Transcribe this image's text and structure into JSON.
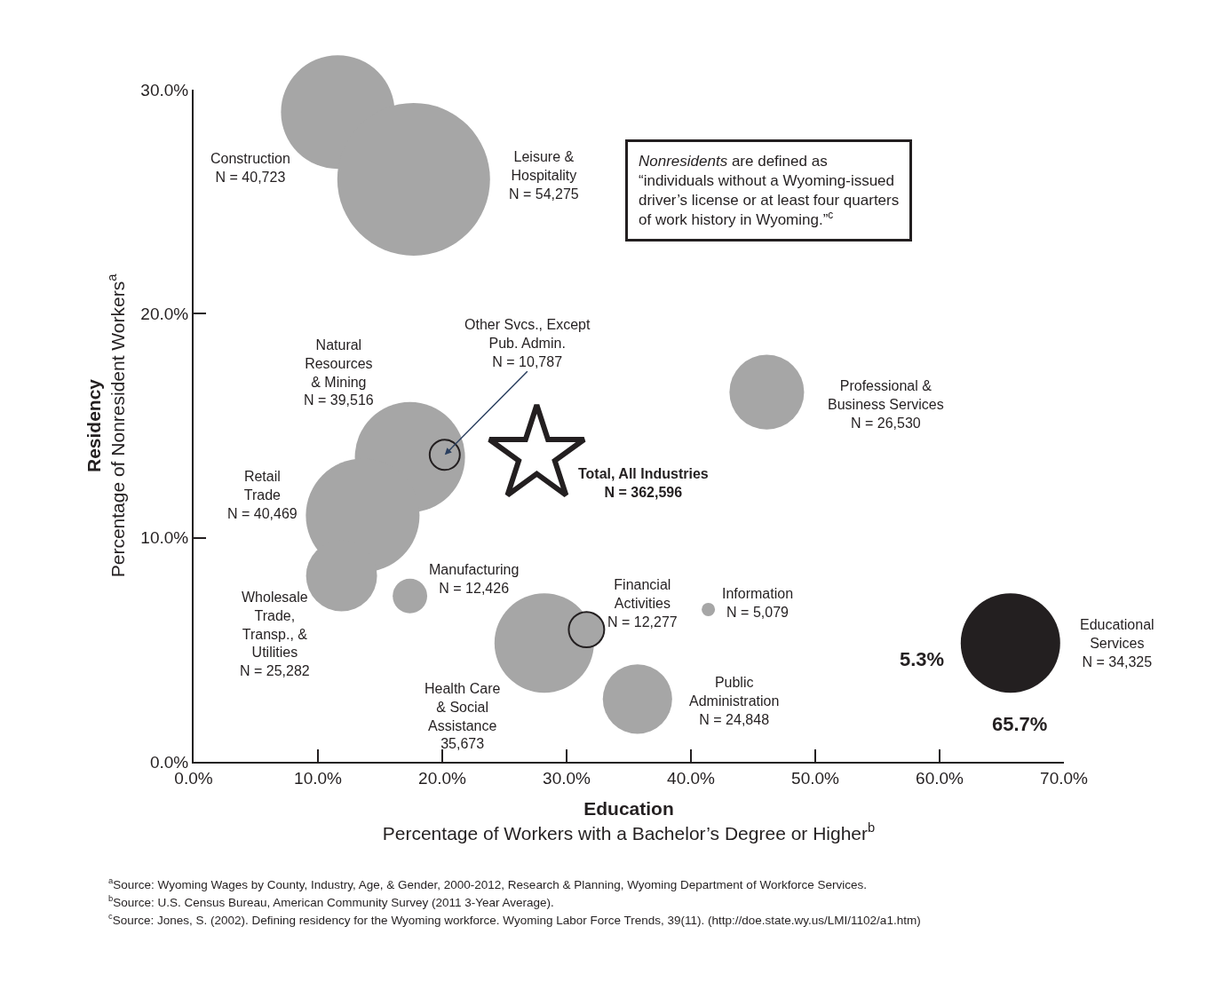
{
  "chart_data": {
    "type": "bubble",
    "xlabel": "Education\nPercentage of Workers with a Bachelor’s Degree or Higher$^{b}$",
    "ylabel": "Residency\nPercentage of Nonresident Workers$^{a}$",
    "xlim": [
      0,
      70
    ],
    "ylim": [
      0,
      30
    ],
    "xticks": [
      {
        "value": 0,
        "label": "0.0%"
      },
      {
        "value": 10,
        "label": "10.0%"
      },
      {
        "value": 20,
        "label": "20.0%"
      },
      {
        "value": 30,
        "label": "30.0%"
      },
      {
        "value": 40,
        "label": "40.0%"
      },
      {
        "value": 50,
        "label": "50.0%"
      },
      {
        "value": 60,
        "label": "60.0%"
      },
      {
        "value": 70,
        "label": "70.0%"
      }
    ],
    "yticks": [
      {
        "value": 0,
        "label": "0.0%"
      },
      {
        "value": 10,
        "label": "10.0%"
      },
      {
        "value": 20,
        "label": "20.0%"
      },
      {
        "value": 30,
        "label": "30.0%"
      }
    ],
    "series": [
      {
        "x": [
          11.6,
          17.7,
          17.4,
          20.2,
          13.6,
          11.9,
          17.4,
          28.2,
          31.6,
          35.7,
          41.4,
          46.1,
          65.7
        ],
        "values": [
          29.0,
          26.0,
          13.6,
          13.7,
          11.0,
          8.3,
          7.4,
          5.3,
          5.9,
          2.8,
          6.8,
          16.5,
          5.3
        ],
        "sizes": [
          0.554,
          1,
          0.52,
          0.039,
          0.554,
          0.216,
          0.051,
          0.424,
          0.054,
          0.206,
          0.0076,
          0.239,
          0.424
        ],
        "colors": [
          "#a6a6a6",
          "#a6a6a6",
          "#a6a6a6",
          "#a6a6a6",
          "#a6a6a6",
          "#a6a6a6",
          "#a6a6a6",
          "#a6a6a6",
          "#a6a6a6",
          "#a6a6a6",
          "#a6a6a6",
          "#a6a6a6",
          "#231f20"
        ]
      },
      {
        "type": "scatter",
        "marker": "star",
        "x": [
          27.6
        ],
        "values": [
          13.7
        ],
        "color": "#ffffff"
      }
    ],
    "annotations": [
      "Construction\nN = 40,723",
      "Leisure &\nHospitality\nN = 54,275",
      "Natural\nResources\n& Mining\nN = 39,516",
      {
        "text": "Other Svcs., Except\nPub. Admin.\nN = 10,787",
        "x": 20.2,
        "y": 13.7
      },
      "Retail\nTrade\nN = 40,469",
      "Wholesale\nTrade,\nTransp., &\nUtilities\nN = 25,282",
      "Manufacturing\nN = 12,426",
      "Health Care\n& Social\nAssistance\n35,673",
      "Financial\nActivities\nN = 12,277",
      "Public\nAdministration\nN = 24,848",
      "Information\nN = 5,079",
      "Professional &\nBusiness Services\nN = 26,530",
      "Educational\nServices\nN = 34,325",
      "Total, All Industries\nN = 362,596",
      "5.3%",
      "65.7%",
      "Nonresidents are defined as\n“individuals without a Wyoming-issued\ndriver’s license or at least four quarters\nof work history in Wyoming.”$^{c}$",
      "$^{a}$Source: Wyoming Wages by County, Industry, Age, & Gender, 2000-2012, Research & Planning, Wyoming Department of Workforce Services.",
      "$^{b}$Source: U.S. Census Bureau, American Community Survey (2011 3-Year Average).",
      "$^{c}$Source: Jones, S. (2002). Defining residency for the Wyoming workforce. Wyoming Labor Force Trends, 39(11). (http://doe.state.wy.us/LMI/1102/a1.htm)"
    ]
  }
}
